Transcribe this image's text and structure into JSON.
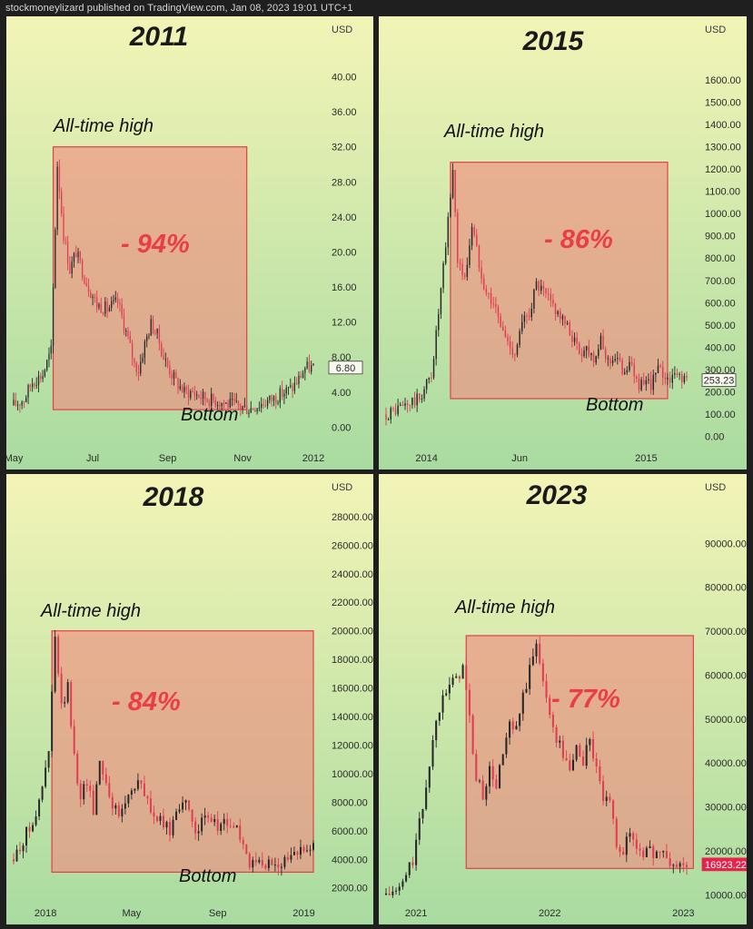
{
  "header": {
    "text": "stockmoneylizard published on TradingView.com, Jan 08, 2023 19:01 UTC+1"
  },
  "colors": {
    "up": "#26272a",
    "down": "#e03c52",
    "box_fill": "#f08a80",
    "box_stroke": "#e0404a",
    "bg_top": "#f3f4b6",
    "bg_bottom": "#a9dba0"
  },
  "chart_data": [
    {
      "type": "candlestick",
      "title": "2011",
      "ylabel": "USD",
      "ylim": [
        -1,
        44
      ],
      "yticks": [
        "40.00",
        "36.00",
        "32.00",
        "28.00",
        "24.00",
        "20.00",
        "16.00",
        "12.00",
        "8.00",
        "4.00",
        "0.00"
      ],
      "ytick_values": [
        40,
        36,
        32,
        28,
        24,
        20,
        16,
        12,
        8,
        4,
        0
      ],
      "xticks": [
        "May",
        "Jul",
        "Sep",
        "Nov",
        "2012"
      ],
      "last_price": "6.80",
      "last_price_value": 6.8,
      "ath_label": "All-time high",
      "bottom_label": "Bottom",
      "drawdown_label": "- 94%",
      "box": {
        "start_index": 19,
        "end_index": 112,
        "top": 32,
        "bottom": 2
      },
      "key_points": [
        [
          0,
          2.5
        ],
        [
          5,
          3.2
        ],
        [
          9,
          5.2
        ],
        [
          14,
          6
        ],
        [
          18,
          8.7
        ],
        [
          21,
          30
        ],
        [
          24,
          22
        ],
        [
          27,
          18
        ],
        [
          30,
          20
        ],
        [
          35,
          16.5
        ],
        [
          40,
          14
        ],
        [
          45,
          13.5
        ],
        [
          50,
          14.3
        ],
        [
          55,
          10
        ],
        [
          58,
          7.2
        ],
        [
          60,
          6.5
        ],
        [
          63,
          9.5
        ],
        [
          66,
          11.8
        ],
        [
          69,
          10.5
        ],
        [
          72,
          8
        ],
        [
          75,
          6.5
        ],
        [
          78,
          5.2
        ],
        [
          82,
          4
        ],
        [
          86,
          4
        ],
        [
          90,
          3.5
        ],
        [
          94,
          3.2
        ],
        [
          98,
          3
        ],
        [
          102,
          2.7
        ],
        [
          106,
          2.5
        ],
        [
          110,
          2.3
        ],
        [
          113,
          2.1
        ],
        [
          118,
          2.6
        ],
        [
          122,
          3
        ],
        [
          126,
          3.4
        ],
        [
          130,
          4
        ],
        [
          134,
          4.5
        ],
        [
          137,
          5.5
        ],
        [
          140,
          6.8
        ],
        [
          144,
          6.8
        ]
      ]
    },
    {
      "type": "candlestick",
      "title": "2015",
      "ylabel": "USD",
      "ylim": [
        -50,
        1770
      ],
      "yticks": [
        "1600.00",
        "1500.00",
        "1400.00",
        "1300.00",
        "1200.00",
        "1100.00",
        "1000.00",
        "900.00",
        "800.00",
        "700.00",
        "600.00",
        "500.00",
        "400.00",
        "300.00",
        "200.00",
        "100.00",
        "0.00"
      ],
      "ytick_values": [
        1600,
        1500,
        1400,
        1300,
        1200,
        1100,
        1000,
        900,
        800,
        700,
        600,
        500,
        400,
        300,
        200,
        100,
        0
      ],
      "xticks": [
        "2014",
        "Jun",
        "2015"
      ],
      "last_price": "253.23",
      "last_price_value": 253.23,
      "ath_label": "All-time high",
      "bottom_label": "Bottom",
      "drawdown_label": "- 86%",
      "box": {
        "start_index": 27,
        "end_index": 118,
        "top": 1230,
        "bottom": 170
      },
      "key_points": [
        [
          0,
          100
        ],
        [
          8,
          140
        ],
        [
          14,
          170
        ],
        [
          19,
          280
        ],
        [
          22,
          550
        ],
        [
          25,
          850
        ],
        [
          28,
          1200
        ],
        [
          30,
          800
        ],
        [
          33,
          700
        ],
        [
          36,
          950
        ],
        [
          39,
          780
        ],
        [
          42,
          650
        ],
        [
          45,
          600
        ],
        [
          48,
          500
        ],
        [
          51,
          420
        ],
        [
          54,
          380
        ],
        [
          57,
          500
        ],
        [
          60,
          560
        ],
        [
          63,
          680
        ],
        [
          66,
          640
        ],
        [
          69,
          600
        ],
        [
          72,
          560
        ],
        [
          75,
          500
        ],
        [
          78,
          450
        ],
        [
          81,
          380
        ],
        [
          84,
          400
        ],
        [
          87,
          360
        ],
        [
          90,
          420
        ],
        [
          93,
          340
        ],
        [
          96,
          360
        ],
        [
          99,
          300
        ],
        [
          102,
          330
        ],
        [
          105,
          250
        ],
        [
          108,
          220
        ],
        [
          111,
          240
        ],
        [
          114,
          300
        ],
        [
          117,
          270
        ],
        [
          120,
          260
        ],
        [
          123,
          280
        ],
        [
          126,
          253
        ]
      ]
    },
    {
      "type": "candlestick",
      "title": "2018",
      "ylabel": "USD",
      "ylim": [
        900,
        29200
      ],
      "yticks": [
        "28000.00",
        "26000.00",
        "24000.00",
        "22000.00",
        "20000.00",
        "18000.00",
        "16000.00",
        "14000.00",
        "12000.00",
        "10000.00",
        "8000.00",
        "6000.00",
        "4000.00",
        "2000.00"
      ],
      "ytick_values": [
        28000,
        26000,
        24000,
        22000,
        20000,
        18000,
        16000,
        14000,
        12000,
        10000,
        8000,
        6000,
        4000,
        2000
      ],
      "xticks": [
        "2018",
        "May",
        "Sep",
        "2019"
      ],
      "ath_label": "All-time high",
      "bottom_label": "Bottom",
      "drawdown_label": "- 84%",
      "box": {
        "start_index": 12,
        "end_index": 94,
        "top": 20000,
        "bottom": 3100
      },
      "key_points": [
        [
          0,
          4000
        ],
        [
          4,
          5800
        ],
        [
          8,
          7800
        ],
        [
          11,
          11500
        ],
        [
          13,
          19500
        ],
        [
          15,
          14500
        ],
        [
          17,
          16000
        ],
        [
          19,
          11000
        ],
        [
          21,
          8500
        ],
        [
          23,
          9500
        ],
        [
          25,
          7500
        ],
        [
          27,
          11000
        ],
        [
          29,
          9500
        ],
        [
          31,
          7800
        ],
        [
          33,
          7000
        ],
        [
          35,
          8000
        ],
        [
          37,
          9000
        ],
        [
          39,
          9500
        ],
        [
          41,
          8500
        ],
        [
          43,
          7500
        ],
        [
          45,
          6700
        ],
        [
          47,
          6400
        ],
        [
          49,
          6000
        ],
        [
          51,
          7500
        ],
        [
          53,
          8300
        ],
        [
          55,
          7000
        ],
        [
          57,
          6200
        ],
        [
          59,
          6500
        ],
        [
          61,
          6700
        ],
        [
          63,
          6500
        ],
        [
          65,
          6400
        ],
        [
          67,
          6500
        ],
        [
          69,
          6300
        ],
        [
          71,
          5700
        ],
        [
          73,
          4000
        ],
        [
          75,
          3500
        ],
        [
          77,
          3800
        ],
        [
          79,
          3500
        ],
        [
          82,
          3800
        ],
        [
          85,
          3900
        ],
        [
          88,
          4100
        ],
        [
          91,
          5000
        ],
        [
          94,
          5200
        ]
      ]
    },
    {
      "type": "candlestick",
      "title": "2023",
      "ylabel": "USD",
      "ylim": [
        8000,
        100000
      ],
      "yticks": [
        "90000.00",
        "80000.00",
        "70000.00",
        "60000.00",
        "50000.00",
        "40000.00",
        "30000.00",
        "20000.00",
        "10000.00"
      ],
      "ytick_values": [
        90000,
        80000,
        70000,
        60000,
        50000,
        40000,
        30000,
        20000,
        10000
      ],
      "xticks": [
        "2021",
        "2022",
        "2023"
      ],
      "last_price": "16923.22",
      "last_price_value": 16923.22,
      "ath_label": "All-time high",
      "drawdown_label": "- 77%",
      "box": {
        "start_index": 24,
        "end_index": 92,
        "top": 69000,
        "bottom": 16000
      },
      "key_points": [
        [
          0,
          10000
        ],
        [
          4,
          11000
        ],
        [
          8,
          18000
        ],
        [
          11,
          30000
        ],
        [
          14,
          45000
        ],
        [
          17,
          57000
        ],
        [
          20,
          58000
        ],
        [
          23,
          62000
        ],
        [
          25,
          50000
        ],
        [
          27,
          36000
        ],
        [
          29,
          33000
        ],
        [
          31,
          38000
        ],
        [
          33,
          35000
        ],
        [
          35,
          42000
        ],
        [
          37,
          48000
        ],
        [
          39,
          47000
        ],
        [
          41,
          55000
        ],
        [
          43,
          61000
        ],
        [
          45,
          67000
        ],
        [
          47,
          60000
        ],
        [
          49,
          50000
        ],
        [
          51,
          46000
        ],
        [
          53,
          42000
        ],
        [
          55,
          38000
        ],
        [
          57,
          44000
        ],
        [
          59,
          40000
        ],
        [
          61,
          46000
        ],
        [
          63,
          38000
        ],
        [
          65,
          32000
        ],
        [
          67,
          30000
        ],
        [
          69,
          22000
        ],
        [
          71,
          20000
        ],
        [
          73,
          24000
        ],
        [
          75,
          21000
        ],
        [
          77,
          20000
        ],
        [
          79,
          19500
        ],
        [
          81,
          20000
        ],
        [
          83,
          19000
        ],
        [
          85,
          17000
        ],
        [
          87,
          16500
        ],
        [
          89,
          16900
        ]
      ]
    }
  ]
}
